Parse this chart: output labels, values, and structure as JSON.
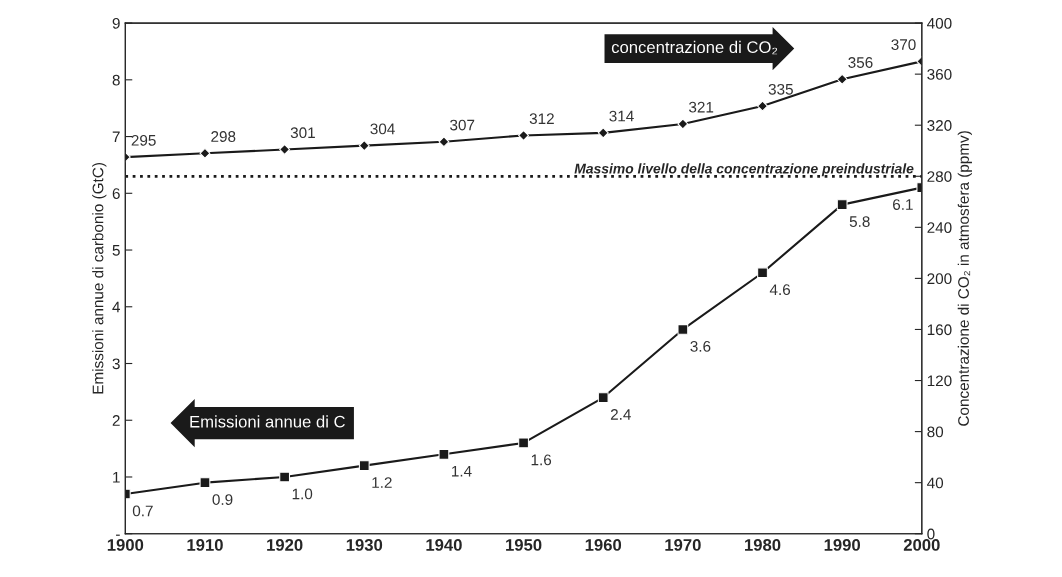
{
  "chart_data": {
    "type": "line",
    "ylabel": "Emissioni annue di carbonio (GtC)",
    "y2label": "Concentrazione di CO₂ in atmosfera (ppmv)",
    "x": [
      1900,
      1910,
      1920,
      1930,
      1940,
      1950,
      1960,
      1970,
      1980,
      1990,
      2000
    ],
    "series": [
      {
        "name": "Emissioni annue di C",
        "color": "#1a1a1a",
        "marker": "square",
        "values": [
          0.7,
          0.9,
          1.0,
          1.2,
          1.4,
          1.6,
          2.4,
          3.6,
          4.6,
          5.8,
          6.1
        ],
        "value_labels": [
          "0.7",
          "0.9",
          "1.0",
          "1.2",
          "1.4",
          "1.6",
          "2.4",
          "3.6",
          "4.6",
          "5.8",
          "6.1"
        ]
      },
      {
        "name": "concentrazione di CO₂",
        "color": "#1a1a1a",
        "marker": "diamond",
        "axis": "y2",
        "values": [
          295,
          298,
          301,
          304,
          307,
          312,
          314,
          321,
          335,
          356,
          370
        ]
      }
    ],
    "xlim": [
      1900,
      2000
    ],
    "xticks": [
      1900,
      1910,
      1920,
      1930,
      1940,
      1950,
      1960,
      1970,
      1980,
      1990,
      2000
    ],
    "ylim": [
      0,
      9
    ],
    "yticks": [
      {
        "value": 0,
        "label": "-"
      },
      1,
      2,
      3,
      4,
      5,
      6,
      7,
      8,
      9
    ],
    "y2lim": [
      0,
      400
    ],
    "y2ticks": [
      0,
      40,
      80,
      120,
      160,
      200,
      240,
      280,
      320,
      360,
      400
    ],
    "ref_lines": [
      {
        "axis": "y2",
        "value": 280,
        "label": "Massimo livello della concentrazione preindustriale",
        "line_style": "dotted",
        "color": "#1a1a1a"
      }
    ],
    "data_labels": true,
    "grid": false,
    "legend": false,
    "line_style": "solid"
  }
}
